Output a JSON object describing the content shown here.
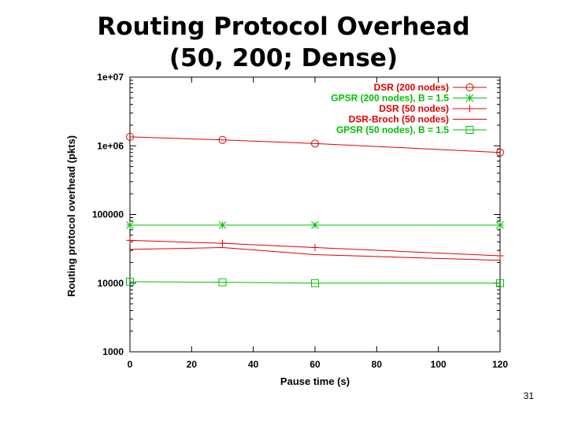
{
  "slide": {
    "title_line1": "Routing Protocol Overhead",
    "title_line2": "(50, 200; Dense)",
    "page_number": "31"
  },
  "chart_data": {
    "type": "line",
    "xlabel": "Pause time (s)",
    "ylabel": "Routing protocol overhead (pkts)",
    "xlim": [
      0,
      120
    ],
    "ylim": [
      1000,
      10000000
    ],
    "yscale": "log",
    "xticks": [
      0,
      20,
      40,
      60,
      80,
      100,
      120
    ],
    "yticks": [
      1000,
      10000,
      100000,
      1000000,
      10000000
    ],
    "xtick_labels": [
      "0",
      "20",
      "40",
      "60",
      "80",
      "100",
      "120"
    ],
    "ytick_labels": [
      "1000",
      "10000",
      "100000",
      "1e+06",
      "1e+07"
    ],
    "legend_position": "top-right",
    "x": [
      0,
      30,
      60,
      120
    ],
    "series": [
      {
        "name": "DSR (200 nodes)",
        "color": "#e00000",
        "marker": "circle",
        "values": [
          1350000,
          1220000,
          1080000,
          800000
        ]
      },
      {
        "name": "GPSR (200 nodes), B = 1.5",
        "color": "#00c000",
        "marker": "star",
        "values": [
          70000,
          70000,
          70000,
          70000
        ]
      },
      {
        "name": "DSR (50 nodes)",
        "color": "#e00000",
        "marker": "plus",
        "values": [
          42000,
          38000,
          33000,
          25000
        ]
      },
      {
        "name": "DSR-Broch (50 nodes)",
        "color": "#e00000",
        "marker": "none",
        "values": [
          31000,
          33000,
          26000,
          21500
        ]
      },
      {
        "name": "GPSR (50 nodes), B = 1.5",
        "color": "#00c000",
        "marker": "square",
        "values": [
          10500,
          10300,
          10000,
          10000
        ]
      }
    ]
  }
}
